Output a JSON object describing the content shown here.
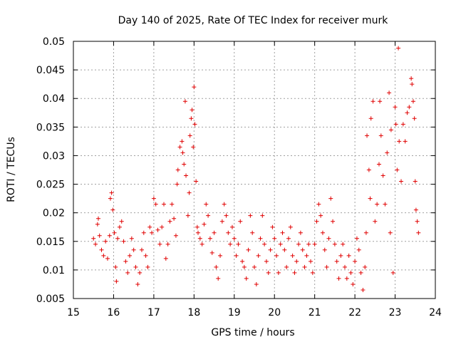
{
  "chart_data": {
    "type": "scatter",
    "title": "Day 140 of 2025, Rate Of TEC Index for receiver murk",
    "xlabel": "GPS time / hours",
    "ylabel": "ROTI / TECUs",
    "xlim": [
      15,
      24
    ],
    "ylim": [
      0.005,
      0.05
    ],
    "x_ticks": [
      "15",
      "16",
      "17",
      "18",
      "19",
      "20",
      "21",
      "22",
      "23",
      "24"
    ],
    "y_ticks": [
      "0.005",
      "0.01",
      "0.015",
      "0.02",
      "0.025",
      "0.03",
      "0.035",
      "0.04",
      "0.045",
      "0.05"
    ],
    "grid": true,
    "marker": "+",
    "marker_color": "#e00000",
    "series": [
      {
        "name": "ROTI",
        "points": [
          [
            15.5,
            0.0155
          ],
          [
            15.55,
            0.0145
          ],
          [
            15.6,
            0.018
          ],
          [
            15.62,
            0.019
          ],
          [
            15.65,
            0.016
          ],
          [
            15.7,
            0.0135
          ],
          [
            15.75,
            0.0125
          ],
          [
            15.8,
            0.015
          ],
          [
            15.85,
            0.012
          ],
          [
            15.9,
            0.016
          ],
          [
            15.92,
            0.0225
          ],
          [
            15.95,
            0.0235
          ],
          [
            15.98,
            0.0205
          ],
          [
            16.02,
            0.0165
          ],
          [
            16.05,
            0.0105
          ],
          [
            16.07,
            0.008
          ],
          [
            16.1,
            0.0155
          ],
          [
            16.15,
            0.0175
          ],
          [
            16.2,
            0.0185
          ],
          [
            16.25,
            0.015
          ],
          [
            16.3,
            0.0115
          ],
          [
            16.35,
            0.0095
          ],
          [
            16.4,
            0.0125
          ],
          [
            16.45,
            0.0155
          ],
          [
            16.5,
            0.0135
          ],
          [
            16.55,
            0.0105
          ],
          [
            16.6,
            0.0075
          ],
          [
            16.65,
            0.0095
          ],
          [
            16.7,
            0.0135
          ],
          [
            16.75,
            0.0165
          ],
          [
            16.8,
            0.0125
          ],
          [
            16.85,
            0.0105
          ],
          [
            16.9,
            0.0175
          ],
          [
            16.95,
            0.0165
          ],
          [
            17.0,
            0.0225
          ],
          [
            17.05,
            0.0215
          ],
          [
            17.1,
            0.017
          ],
          [
            17.15,
            0.0145
          ],
          [
            17.2,
            0.0175
          ],
          [
            17.25,
            0.0215
          ],
          [
            17.3,
            0.012
          ],
          [
            17.35,
            0.0145
          ],
          [
            17.4,
            0.0185
          ],
          [
            17.45,
            0.0215
          ],
          [
            17.5,
            0.019
          ],
          [
            17.55,
            0.016
          ],
          [
            17.58,
            0.025
          ],
          [
            17.6,
            0.0275
          ],
          [
            17.65,
            0.0315
          ],
          [
            17.7,
            0.0325
          ],
          [
            17.72,
            0.0305
          ],
          [
            17.75,
            0.0285
          ],
          [
            17.78,
            0.0395
          ],
          [
            17.8,
            0.0265
          ],
          [
            17.85,
            0.0195
          ],
          [
            17.88,
            0.0235
          ],
          [
            17.9,
            0.0335
          ],
          [
            17.93,
            0.0365
          ],
          [
            17.95,
            0.038
          ],
          [
            17.98,
            0.0315
          ],
          [
            18.0,
            0.042
          ],
          [
            18.02,
            0.0355
          ],
          [
            18.05,
            0.0255
          ],
          [
            18.08,
            0.0175
          ],
          [
            18.1,
            0.0165
          ],
          [
            18.15,
            0.0155
          ],
          [
            18.2,
            0.0145
          ],
          [
            18.25,
            0.018
          ],
          [
            18.3,
            0.0215
          ],
          [
            18.35,
            0.0195
          ],
          [
            18.4,
            0.0155
          ],
          [
            18.45,
            0.013
          ],
          [
            18.5,
            0.0165
          ],
          [
            18.55,
            0.0105
          ],
          [
            18.6,
            0.0085
          ],
          [
            18.65,
            0.0125
          ],
          [
            18.7,
            0.0185
          ],
          [
            18.75,
            0.0215
          ],
          [
            18.8,
            0.0195
          ],
          [
            18.85,
            0.0165
          ],
          [
            18.9,
            0.0145
          ],
          [
            18.95,
            0.0175
          ],
          [
            19.0,
            0.0155
          ],
          [
            19.05,
            0.0125
          ],
          [
            19.1,
            0.0145
          ],
          [
            19.15,
            0.0185
          ],
          [
            19.2,
            0.0115
          ],
          [
            19.25,
            0.0105
          ],
          [
            19.3,
            0.0085
          ],
          [
            19.35,
            0.0135
          ],
          [
            19.4,
            0.0195
          ],
          [
            19.45,
            0.0165
          ],
          [
            19.5,
            0.0105
          ],
          [
            19.55,
            0.0075
          ],
          [
            19.6,
            0.0125
          ],
          [
            19.65,
            0.0155
          ],
          [
            19.7,
            0.0195
          ],
          [
            19.75,
            0.0145
          ],
          [
            19.8,
            0.0115
          ],
          [
            19.85,
            0.0095
          ],
          [
            19.9,
            0.0135
          ],
          [
            19.95,
            0.0175
          ],
          [
            20.0,
            0.0155
          ],
          [
            20.05,
            0.0125
          ],
          [
            20.1,
            0.0095
          ],
          [
            20.15,
            0.0145
          ],
          [
            20.2,
            0.0165
          ],
          [
            20.25,
            0.0135
          ],
          [
            20.3,
            0.0105
          ],
          [
            20.35,
            0.0155
          ],
          [
            20.4,
            0.0175
          ],
          [
            20.45,
            0.0125
          ],
          [
            20.5,
            0.0095
          ],
          [
            20.55,
            0.0115
          ],
          [
            20.6,
            0.0145
          ],
          [
            20.65,
            0.0165
          ],
          [
            20.7,
            0.0135
          ],
          [
            20.75,
            0.0105
          ],
          [
            20.8,
            0.0125
          ],
          [
            20.85,
            0.0145
          ],
          [
            20.9,
            0.0115
          ],
          [
            20.95,
            0.0095
          ],
          [
            21.0,
            0.0145
          ],
          [
            21.05,
            0.0185
          ],
          [
            21.1,
            0.0215
          ],
          [
            21.15,
            0.0195
          ],
          [
            21.2,
            0.0165
          ],
          [
            21.25,
            0.0135
          ],
          [
            21.3,
            0.0105
          ],
          [
            21.35,
            0.0155
          ],
          [
            21.4,
            0.0225
          ],
          [
            21.45,
            0.0185
          ],
          [
            21.5,
            0.0145
          ],
          [
            21.55,
            0.0115
          ],
          [
            21.6,
            0.0085
          ],
          [
            21.65,
            0.0125
          ],
          [
            21.7,
            0.0145
          ],
          [
            21.75,
            0.0105
          ],
          [
            21.8,
            0.0085
          ],
          [
            21.85,
            0.0125
          ],
          [
            21.9,
            0.0095
          ],
          [
            21.95,
            0.0075
          ],
          [
            22.0,
            0.0115
          ],
          [
            22.05,
            0.0155
          ],
          [
            22.1,
            0.0135
          ],
          [
            22.15,
            0.0095
          ],
          [
            22.2,
            0.0065
          ],
          [
            22.25,
            0.0105
          ],
          [
            22.28,
            0.0165
          ],
          [
            22.3,
            0.0335
          ],
          [
            22.35,
            0.0275
          ],
          [
            22.38,
            0.0225
          ],
          [
            22.4,
            0.0365
          ],
          [
            22.45,
            0.0395
          ],
          [
            22.5,
            0.0185
          ],
          [
            22.55,
            0.0215
          ],
          [
            22.6,
            0.0285
          ],
          [
            22.62,
            0.0395
          ],
          [
            22.65,
            0.0335
          ],
          [
            22.7,
            0.0265
          ],
          [
            22.75,
            0.0215
          ],
          [
            22.8,
            0.0305
          ],
          [
            22.85,
            0.041
          ],
          [
            22.88,
            0.0165
          ],
          [
            22.9,
            0.0345
          ],
          [
            22.95,
            0.0095
          ],
          [
            23.0,
            0.0385
          ],
          [
            23.02,
            0.0355
          ],
          [
            23.05,
            0.0275
          ],
          [
            23.08,
            0.0488
          ],
          [
            23.1,
            0.0325
          ],
          [
            23.15,
            0.0255
          ],
          [
            23.2,
            0.0355
          ],
          [
            23.25,
            0.0325
          ],
          [
            23.3,
            0.0375
          ],
          [
            23.35,
            0.0385
          ],
          [
            23.4,
            0.0435
          ],
          [
            23.42,
            0.0425
          ],
          [
            23.45,
            0.0395
          ],
          [
            23.48,
            0.0365
          ],
          [
            23.5,
            0.0255
          ],
          [
            23.52,
            0.0205
          ],
          [
            23.55,
            0.0185
          ],
          [
            23.58,
            0.0165
          ]
        ]
      }
    ]
  }
}
